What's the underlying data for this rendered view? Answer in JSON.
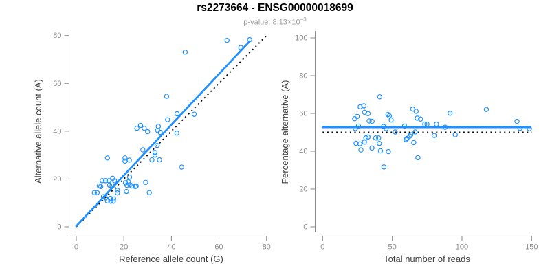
{
  "header": {
    "title": "rs2273664 - ENSG00000018699",
    "subtitle_prefix": "p-value: 8.13×10",
    "subtitle_exponent": "−3"
  },
  "colors": {
    "accent_blue": "#1E90FF",
    "reference_line": "#0a0a0a",
    "axis_line": "#8a8a8a",
    "tick_label": "#8a8a8a",
    "axis_title": "#404040",
    "title": "#000000",
    "subtitle": "#9e9e9e"
  },
  "chart_data": [
    {
      "type": "scatter",
      "xlabel": "Reference allele count (G)",
      "ylabel": "Alternative allele count (A)",
      "xlim": [
        0,
        80
      ],
      "ylim": [
        0,
        80
      ],
      "xticks": [
        0,
        20,
        40,
        60,
        80
      ],
      "yticks": [
        0,
        20,
        40,
        60,
        80
      ],
      "grid": false,
      "marker": "open-circle",
      "points": [
        [
          7.6,
          14.3
        ],
        [
          8.8,
          14.3
        ],
        [
          9.7,
          17.1
        ],
        [
          10.3,
          16.9
        ],
        [
          10.9,
          19.3
        ],
        [
          12.3,
          19.3
        ],
        [
          13.7,
          19.3
        ],
        [
          15.3,
          20.3
        ],
        [
          16.1,
          19.3
        ],
        [
          14.0,
          17.4
        ],
        [
          15.0,
          17.1
        ],
        [
          11.4,
          12.6
        ],
        [
          12.3,
          12.1
        ],
        [
          13.1,
          10.8
        ],
        [
          14.3,
          11.9
        ],
        [
          15.7,
          11.7
        ],
        [
          14.5,
          10.7
        ],
        [
          15.6,
          10.7
        ],
        [
          17.3,
          15.3
        ],
        [
          17.3,
          14.2
        ],
        [
          21.1,
          14.8
        ],
        [
          20.7,
          18.4
        ],
        [
          21.9,
          18.8
        ],
        [
          21.3,
          17.4
        ],
        [
          22.6,
          17.6
        ],
        [
          24.8,
          16.9
        ],
        [
          22.4,
          20.8
        ],
        [
          25.2,
          17.1
        ],
        [
          23.3,
          17.1
        ],
        [
          29.2,
          18.6
        ],
        [
          30.7,
          14.3
        ],
        [
          13.1,
          28.8
        ],
        [
          20.5,
          28.8
        ],
        [
          20.5,
          27.5
        ],
        [
          22.3,
          27.9
        ],
        [
          28.0,
          32.2
        ],
        [
          33.1,
          31.1
        ],
        [
          33.1,
          30.0
        ],
        [
          31.8,
          28.0
        ],
        [
          35.0,
          28.0
        ],
        [
          44.3,
          25.0
        ],
        [
          34.0,
          34.0
        ],
        [
          25.5,
          41.2
        ],
        [
          27.0,
          42.4
        ],
        [
          28.6,
          41.2
        ],
        [
          30.0,
          39.8
        ],
        [
          34.5,
          42.0
        ],
        [
          34.2,
          40.3
        ],
        [
          35.3,
          39.5
        ],
        [
          38.4,
          44.8
        ],
        [
          42.4,
          47.3
        ],
        [
          49.6,
          47.1
        ],
        [
          42.3,
          39.2
        ],
        [
          38.0,
          54.6
        ],
        [
          45.8,
          73.1
        ],
        [
          63.4,
          78.0
        ],
        [
          72.9,
          78.3
        ],
        [
          69.2,
          75.0
        ]
      ],
      "fit_line": {
        "style": "solid",
        "from": [
          0,
          0.3
        ],
        "to": [
          72.9,
          77.6
        ]
      },
      "reference_line": {
        "style": "dotted",
        "meaning": "identity y=x",
        "from": [
          0,
          0
        ],
        "to": [
          80.5,
          80.5
        ]
      }
    },
    {
      "type": "scatter",
      "xlabel": "Total number of reads",
      "ylabel": "Percentage alternative (A)",
      "xlim": [
        0,
        150
      ],
      "ylim": [
        0,
        100
      ],
      "xticks": [
        0,
        50,
        100,
        150
      ],
      "yticks": [
        0,
        20,
        40,
        60,
        80,
        100
      ],
      "grid": false,
      "marker": "open-circle",
      "points": [
        [
          23.0,
          57.2
        ],
        [
          24.8,
          58.4
        ],
        [
          23.5,
          52.0
        ],
        [
          24.0,
          44.2
        ],
        [
          25.7,
          53.3
        ],
        [
          26.7,
          43.9
        ],
        [
          26.9,
          63.5
        ],
        [
          27.5,
          40.7
        ],
        [
          29.6,
          64.0
        ],
        [
          30.1,
          60.6
        ],
        [
          30.0,
          44.8
        ],
        [
          31.0,
          47.0
        ],
        [
          32.6,
          59.9
        ],
        [
          32.6,
          47.5
        ],
        [
          33.4,
          56.0
        ],
        [
          35.5,
          55.8
        ],
        [
          35.4,
          41.7
        ],
        [
          38.1,
          47.0
        ],
        [
          40.2,
          47.0
        ],
        [
          40.7,
          44.1
        ],
        [
          41.0,
          68.8
        ],
        [
          41.5,
          40.2
        ],
        [
          43.7,
          53.1
        ],
        [
          44.0,
          31.7
        ],
        [
          45.6,
          51.9
        ],
        [
          46.9,
          59.4
        ],
        [
          47.9,
          58.7
        ],
        [
          49.2,
          56.5
        ],
        [
          47.2,
          39.8
        ],
        [
          52.1,
          50.2
        ],
        [
          58.8,
          53.3
        ],
        [
          60.0,
          46.1
        ],
        [
          60.5,
          46.7
        ],
        [
          62.5,
          48.0
        ],
        [
          63.3,
          48.7
        ],
        [
          64.7,
          62.3
        ],
        [
          65.4,
          44.6
        ],
        [
          66.4,
          50.2
        ],
        [
          67.1,
          61.1
        ],
        [
          67.9,
          57.5
        ],
        [
          70.3,
          57.0
        ],
        [
          68.4,
          36.6
        ],
        [
          73.3,
          54.3
        ],
        [
          74.9,
          54.3
        ],
        [
          80.1,
          48.3
        ],
        [
          81.7,
          54.3
        ],
        [
          87.9,
          52.7
        ],
        [
          91.5,
          60.1
        ],
        [
          95.2,
          48.7
        ],
        [
          117.5,
          62.1
        ],
        [
          139.5,
          55.8
        ],
        [
          141.6,
          52.1
        ],
        [
          148.4,
          51.9
        ]
      ],
      "fit_line": {
        "style": "solid",
        "from": [
          0,
          52.7
        ],
        "to": [
          149,
          52.7
        ]
      },
      "reference_line": {
        "style": "dotted",
        "meaning": "expected 50%",
        "from": [
          0,
          50
        ],
        "to": [
          150,
          50
        ]
      }
    }
  ]
}
